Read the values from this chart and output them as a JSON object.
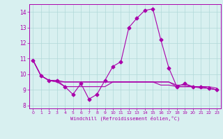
{
  "xlabel": "Windchill (Refroidissement éolien,°C)",
  "x": [
    0,
    1,
    2,
    3,
    4,
    5,
    6,
    7,
    8,
    9,
    10,
    11,
    12,
    13,
    14,
    15,
    16,
    17,
    18,
    19,
    20,
    21,
    22,
    23
  ],
  "line1": [
    10.9,
    9.9,
    9.6,
    9.6,
    9.2,
    8.7,
    9.4,
    8.4,
    8.7,
    9.6,
    10.5,
    10.8,
    13.0,
    13.6,
    14.1,
    14.2,
    12.2,
    10.4,
    9.2,
    9.4,
    9.2,
    9.2,
    9.1,
    9.0
  ],
  "line2": [
    10.9,
    9.9,
    9.6,
    9.6,
    9.5,
    9.5,
    9.5,
    9.5,
    9.5,
    9.5,
    9.5,
    9.5,
    9.5,
    9.5,
    9.5,
    9.5,
    9.5,
    9.5,
    9.3,
    9.3,
    9.2,
    9.2,
    9.2,
    9.1
  ],
  "line3": [
    10.9,
    9.9,
    9.6,
    9.5,
    9.5,
    9.5,
    9.5,
    9.5,
    9.5,
    9.5,
    9.5,
    9.5,
    9.5,
    9.5,
    9.5,
    9.5,
    9.5,
    9.5,
    9.2,
    9.2,
    9.2,
    9.2,
    9.1,
    9.0
  ],
  "line4": [
    10.9,
    9.9,
    9.6,
    9.5,
    9.2,
    9.2,
    9.2,
    9.2,
    9.2,
    9.2,
    9.5,
    9.5,
    9.5,
    9.5,
    9.5,
    9.5,
    9.3,
    9.3,
    9.2,
    9.2,
    9.2,
    9.1,
    9.1,
    9.0
  ],
  "line_color": "#aa00aa",
  "bg_color": "#d8f0f0",
  "grid_color": "#b0d8d8",
  "ylim": [
    7.8,
    14.5
  ],
  "yticks": [
    8,
    9,
    10,
    11,
    12,
    13,
    14
  ],
  "xlim": [
    -0.5,
    23.5
  ],
  "xticks": [
    0,
    1,
    2,
    3,
    4,
    5,
    6,
    7,
    8,
    9,
    10,
    11,
    12,
    13,
    14,
    15,
    16,
    17,
    18,
    19,
    20,
    21,
    22,
    23
  ]
}
